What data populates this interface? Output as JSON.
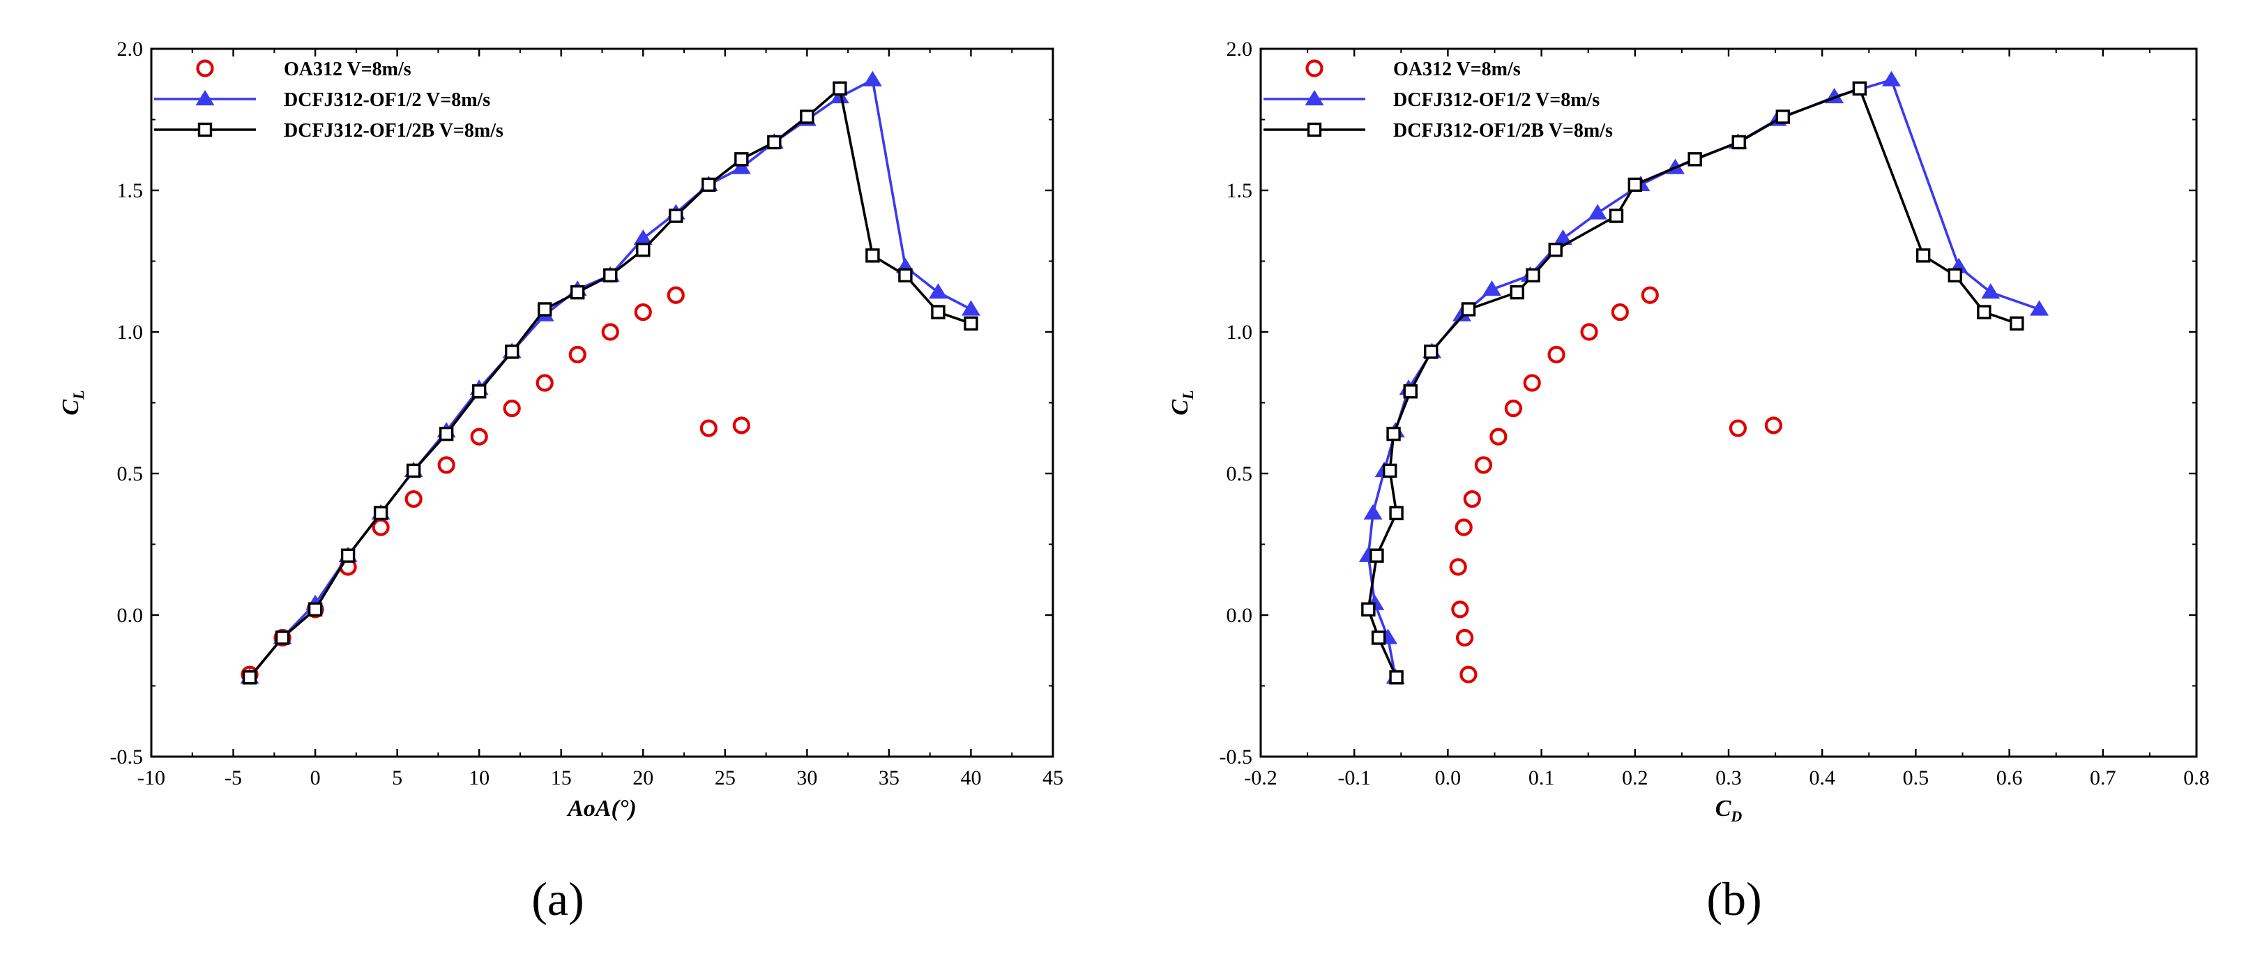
{
  "figure": {
    "labels": [
      "(a)",
      "(b)"
    ]
  },
  "chart_data": [
    {
      "type": "scatter",
      "panel_label": "(a)",
      "xlabel": "AoA(°)",
      "ylabel": "C_L",
      "xlim": [
        -10,
        45
      ],
      "ylim": [
        -0.5,
        2.0
      ],
      "xticks": [
        -10,
        -5,
        0,
        5,
        10,
        15,
        20,
        25,
        30,
        35,
        40,
        45
      ],
      "yticks": [
        -0.5,
        0.0,
        0.5,
        1.0,
        1.5,
        2.0
      ],
      "legend_position": "top-left",
      "series": [
        {
          "name": "OA312  V=8m/s",
          "style": "markers",
          "marker": "circle",
          "color": "#e00000",
          "x": [
            -4,
            -2,
            0,
            2,
            4,
            6,
            8,
            10,
            12,
            14,
            16,
            18,
            20,
            22,
            24,
            26
          ],
          "y": [
            -0.21,
            -0.08,
            0.02,
            0.17,
            0.31,
            0.41,
            0.53,
            0.63,
            0.73,
            0.82,
            0.92,
            1.0,
            1.07,
            1.13,
            0.66,
            0.67
          ]
        },
        {
          "name": "DCFJ312-OF1/2  V=8m/s",
          "style": "line+markers",
          "marker": "triangle",
          "color": "#3a3af0",
          "x": [
            -4,
            -2,
            0,
            2,
            4,
            6,
            8,
            10,
            12,
            14,
            16,
            18,
            20,
            22,
            24,
            26,
            28,
            30,
            32,
            34,
            36,
            38,
            40
          ],
          "y": [
            -0.22,
            -0.08,
            0.04,
            0.21,
            0.36,
            0.51,
            0.65,
            0.8,
            0.93,
            1.06,
            1.15,
            1.2,
            1.33,
            1.42,
            1.52,
            1.58,
            1.67,
            1.75,
            1.83,
            1.89,
            1.23,
            1.14,
            1.08
          ]
        },
        {
          "name": "DCFJ312-OF1/2B  V=8m/s",
          "style": "line+markers",
          "marker": "square",
          "color": "#000000",
          "x": [
            -4,
            -2,
            0,
            2,
            4,
            6,
            8,
            10,
            12,
            14,
            16,
            18,
            20,
            22,
            24,
            26,
            28,
            30,
            32,
            34,
            36,
            38,
            40
          ],
          "y": [
            -0.22,
            -0.08,
            0.02,
            0.21,
            0.36,
            0.51,
            0.64,
            0.79,
            0.93,
            1.08,
            1.14,
            1.2,
            1.29,
            1.41,
            1.52,
            1.61,
            1.67,
            1.76,
            1.86,
            1.27,
            1.2,
            1.07,
            1.03
          ]
        }
      ]
    },
    {
      "type": "scatter",
      "panel_label": "(b)",
      "xlabel": "C_D",
      "ylabel": "C_L",
      "xlim": [
        -0.2,
        0.8
      ],
      "ylim": [
        -0.5,
        2.0
      ],
      "xticks": [
        -0.2,
        -0.1,
        0.0,
        0.1,
        0.2,
        0.3,
        0.4,
        0.5,
        0.6,
        0.7,
        0.8
      ],
      "yticks": [
        -0.5,
        0.0,
        0.5,
        1.0,
        1.5,
        2.0
      ],
      "legend_position": "top-left",
      "series": [
        {
          "name": "OA312  V=8m/s",
          "style": "markers",
          "marker": "circle",
          "color": "#e00000",
          "x": [
            0.022,
            0.018,
            0.013,
            0.011,
            0.017,
            0.026,
            0.038,
            0.054,
            0.07,
            0.09,
            0.116,
            0.151,
            0.184,
            0.216,
            0.31,
            0.348
          ],
          "y": [
            -0.21,
            -0.08,
            0.02,
            0.17,
            0.31,
            0.41,
            0.53,
            0.63,
            0.73,
            0.82,
            0.92,
            1.0,
            1.07,
            1.13,
            0.66,
            0.67
          ]
        },
        {
          "name": "DCFJ312-OF1/2  V=8m/s",
          "style": "line+markers",
          "marker": "triangle",
          "color": "#3a3af0",
          "x": [
            -0.056,
            -0.064,
            -0.078,
            -0.085,
            -0.08,
            -0.068,
            -0.056,
            -0.042,
            -0.017,
            0.015,
            0.047,
            0.088,
            0.123,
            0.16,
            0.206,
            0.243,
            0.31,
            0.352,
            0.413,
            0.474,
            0.546,
            0.58,
            0.632
          ],
          "y": [
            -0.22,
            -0.08,
            0.04,
            0.21,
            0.36,
            0.51,
            0.65,
            0.8,
            0.93,
            1.06,
            1.15,
            1.2,
            1.33,
            1.42,
            1.52,
            1.58,
            1.67,
            1.75,
            1.83,
            1.89,
            1.23,
            1.14,
            1.08
          ]
        },
        {
          "name": "DCFJ312-OF1/2B  V=8m/s",
          "style": "line+markers",
          "marker": "square",
          "color": "#000000",
          "x": [
            -0.055,
            -0.074,
            -0.085,
            -0.076,
            -0.055,
            -0.062,
            -0.058,
            -0.04,
            -0.018,
            0.022,
            0.074,
            0.091,
            0.115,
            0.18,
            0.2,
            0.264,
            0.311,
            0.358,
            0.44,
            0.508,
            0.542,
            0.573,
            0.608
          ],
          "y": [
            -0.22,
            -0.08,
            0.02,
            0.21,
            0.36,
            0.51,
            0.64,
            0.79,
            0.93,
            1.08,
            1.14,
            1.2,
            1.29,
            1.41,
            1.52,
            1.61,
            1.67,
            1.76,
            1.86,
            1.27,
            1.2,
            1.07,
            1.03
          ]
        }
      ]
    }
  ]
}
